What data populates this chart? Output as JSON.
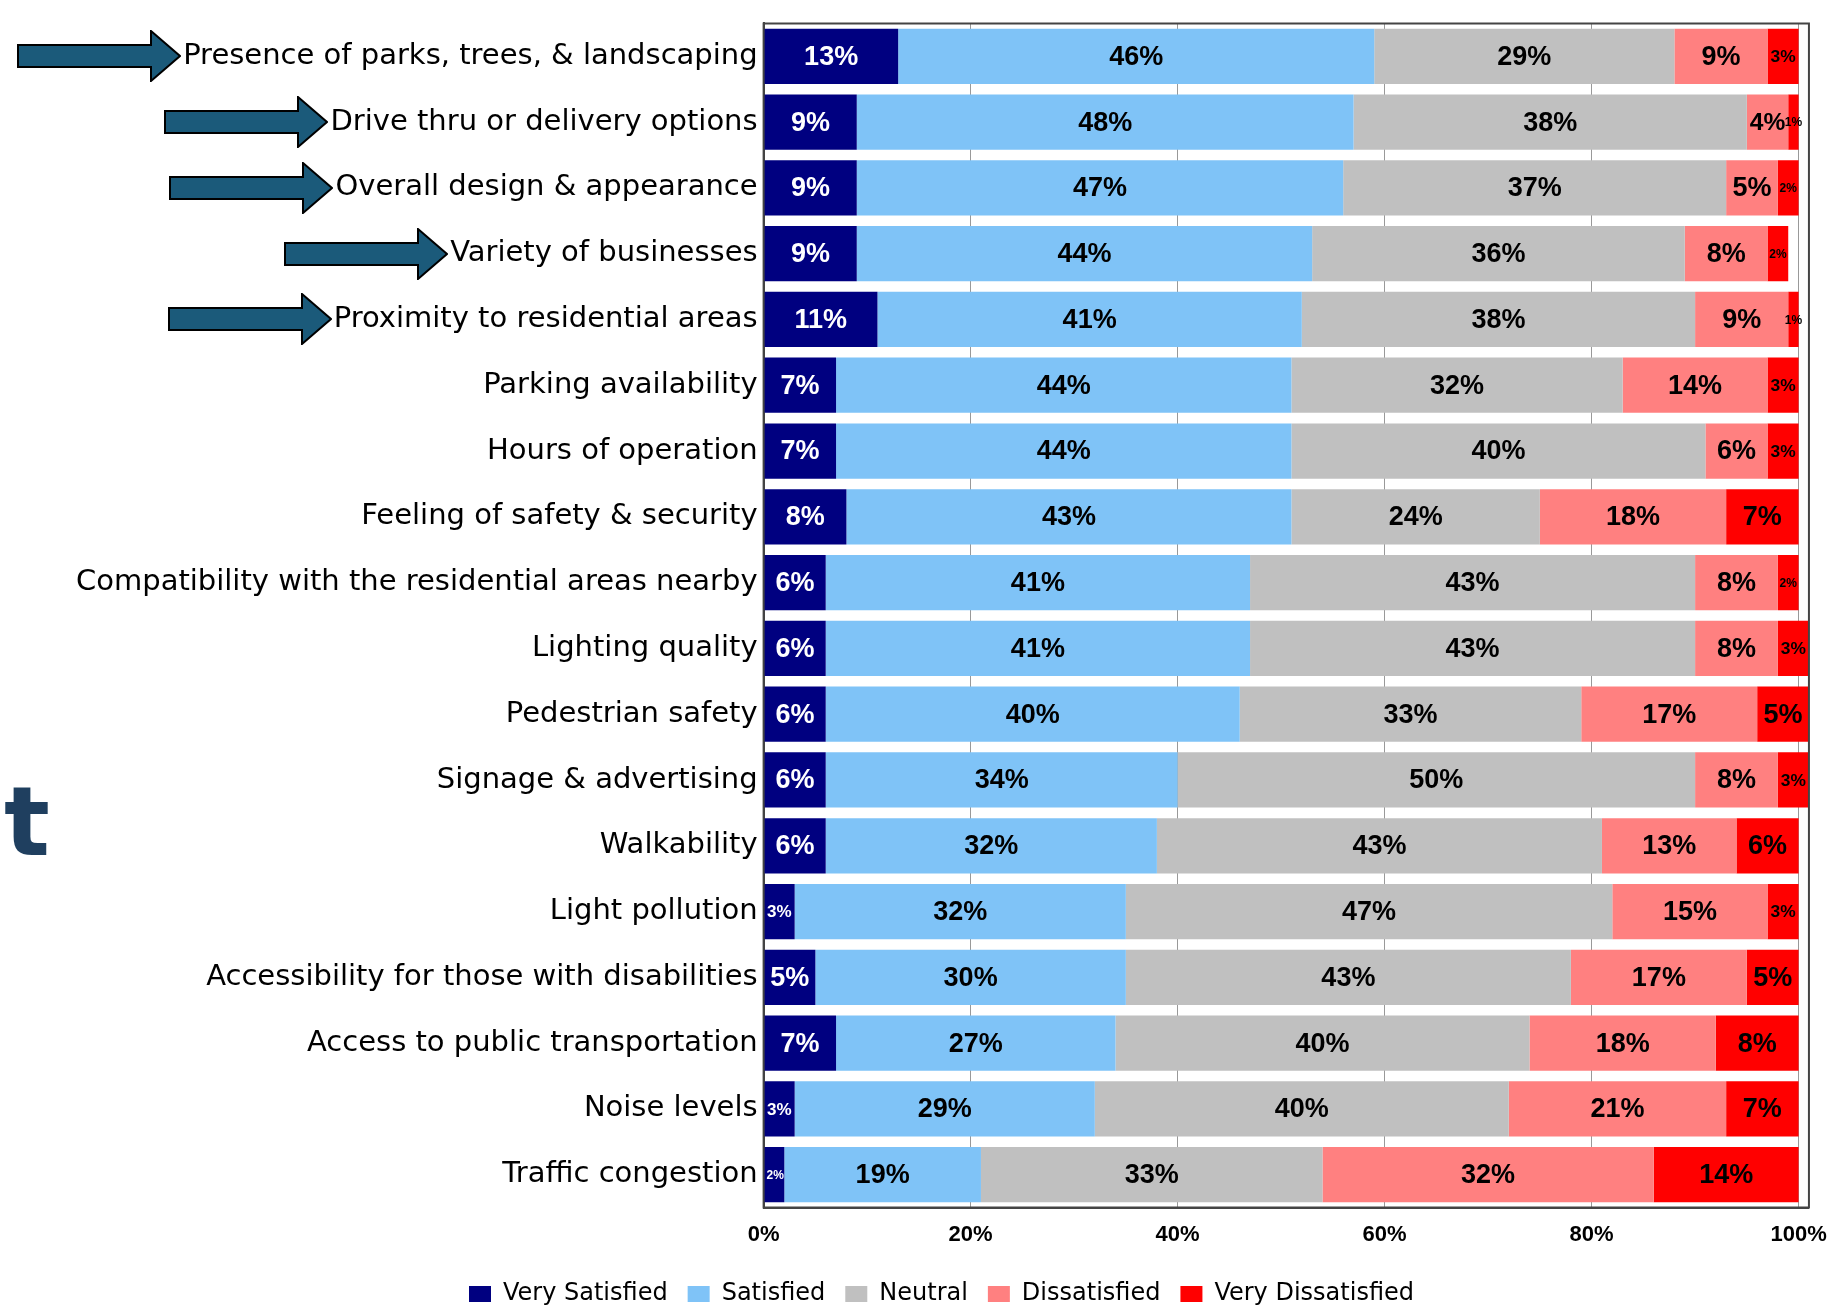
{
  "chart_data": {
    "type": "bar",
    "orientation": "horizontal",
    "stacked": true,
    "categories": [
      "Presence of parks, trees, & landscaping",
      "Drive thru or delivery options",
      "Overall design & appearance",
      "Variety of businesses",
      "Proximity to residential areas",
      "Parking availability",
      "Hours of operation",
      "Feeling of safety & security",
      "Compatibility with the residential areas nearby",
      "Lighting quality",
      "Pedestrian safety",
      "Signage & advertising",
      "Walkability",
      "Light pollution",
      "Accessibility for those with disabilities",
      "Access to public transportation",
      "Noise levels",
      "Traffic congestion"
    ],
    "series": [
      {
        "name": "Very Satisfied",
        "color": "#000080",
        "values": [
          13,
          9,
          9,
          9,
          11,
          7,
          7,
          8,
          6,
          6,
          6,
          6,
          6,
          3,
          5,
          7,
          3,
          2
        ],
        "value_labels": [
          "13%",
          "9%",
          "9%",
          "9%",
          "11%",
          "7%",
          "7%",
          "8%",
          "6%",
          "6%",
          "6%",
          "6%",
          "6%",
          "3%",
          "5%",
          "7%",
          "3%",
          "2%"
        ]
      },
      {
        "name": "Satisfied",
        "color": "#7fc3f7",
        "values": [
          46,
          48,
          47,
          44,
          41,
          44,
          44,
          43,
          41,
          41,
          40,
          34,
          32,
          32,
          30,
          27,
          29,
          19
        ],
        "value_labels": [
          "46%",
          "48%",
          "47%",
          "44%",
          "41%",
          "44%",
          "44%",
          "43%",
          "41%",
          "41%",
          "40%",
          "34%",
          "32%",
          "32%",
          "30%",
          "27%",
          "29%",
          "19%"
        ]
      },
      {
        "name": "Neutral",
        "color": "#c0c0c0",
        "values": [
          29,
          38,
          37,
          36,
          38,
          32,
          40,
          24,
          43,
          43,
          33,
          50,
          43,
          47,
          43,
          40,
          40,
          33
        ],
        "value_labels": [
          "29%",
          "38%",
          "37%",
          "36%",
          "38%",
          "32%",
          "40%",
          "24%",
          "43%",
          "43%",
          "33%",
          "50%",
          "43%",
          "47%",
          "43%",
          "40%",
          "40%",
          "33%"
        ]
      },
      {
        "name": "Dissatisfied",
        "color": "#ff8080",
        "values": [
          9,
          4,
          5,
          8,
          9,
          14,
          6,
          18,
          8,
          8,
          17,
          8,
          13,
          15,
          17,
          18,
          21,
          32
        ],
        "value_labels": [
          "9%",
          "4%",
          "5%",
          "8%",
          "9%",
          "14%",
          "6%",
          "18%",
          "8%",
          "8%",
          "17%",
          "8%",
          "13%",
          "15%",
          "17%",
          "18%",
          "21%",
          "32%"
        ]
      },
      {
        "name": "Very Dissatisfied",
        "color": "#ff0000",
        "values": [
          3,
          1,
          2,
          2,
          1,
          3,
          3,
          7,
          2,
          3,
          5,
          3,
          6,
          3,
          5,
          8,
          7,
          14
        ],
        "value_labels": [
          "3%",
          "1%",
          "2%",
          "2%",
          "1%",
          "3%",
          "3%",
          "7%",
          "2%",
          "3%",
          "5%",
          "3%",
          "6%",
          "3%",
          "5%",
          "8%",
          "7%",
          "14%"
        ]
      }
    ],
    "xlim": [
      0,
      101
    ],
    "xticks": [
      {
        "value": 0,
        "label": "0%"
      },
      {
        "value": 20,
        "label": "20%"
      },
      {
        "value": 40,
        "label": "40%"
      },
      {
        "value": 60,
        "label": "60%"
      },
      {
        "value": 80,
        "label": "80%"
      },
      {
        "value": 100,
        "label": "100%"
      }
    ],
    "grid": "x",
    "legend": "bottom",
    "annotations": [
      "t"
    ]
  }
}
